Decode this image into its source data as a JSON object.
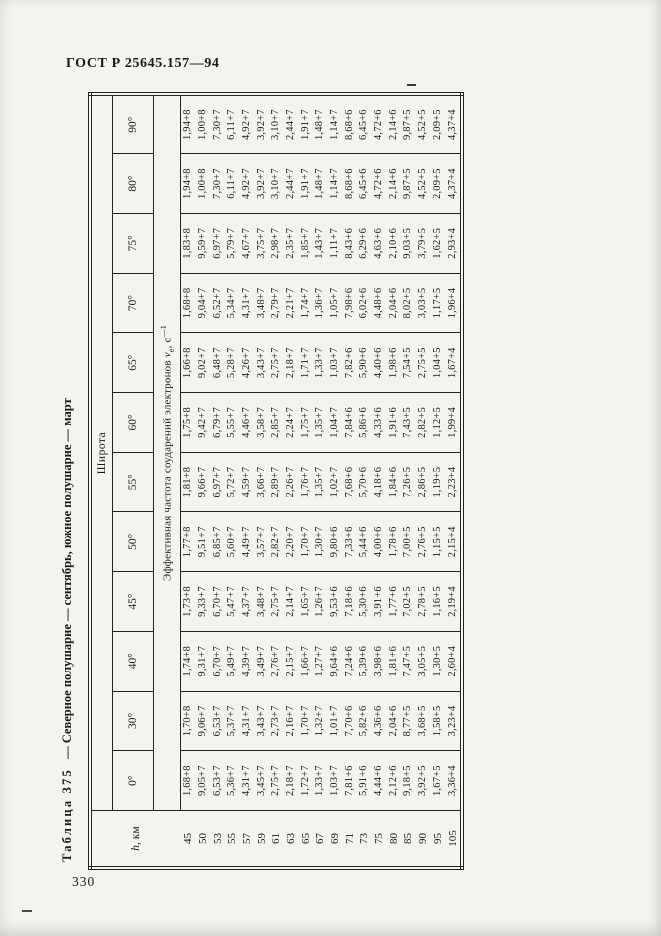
{
  "page": {
    "doc_code": "ГОСТ Р 25645.157—94",
    "page_number": "330"
  },
  "table": {
    "title_label": "Таблица 375",
    "title_rest": "— Северное полушарие — сентябрь, южное полушарие — март",
    "h_header_italic": "h",
    "h_header_rest": ", км",
    "latitude_group_header": "Широта",
    "subtitle_pre": "Эффективная частота соударений электронов ",
    "subtitle_nu": "ν",
    "subtitle_sub": "e",
    "subtitle_mid": ", с",
    "subtitle_sup": "—1",
    "latitudes": [
      "0°",
      "30°",
      "40°",
      "45°",
      "50°",
      "55°",
      "60°",
      "65°",
      "70°",
      "75°",
      "80°",
      "90°"
    ],
    "rows": [
      {
        "h": "45",
        "values": [
          "1,68+8",
          "1,70+8",
          "1,74+8",
          "1,73+8",
          "1,77+8",
          "1,81+8",
          "1,75+8",
          "1,66+8",
          "1,68+8",
          "1,83+8",
          "1,94+8",
          "1,94+8"
        ]
      },
      {
        "h": "50",
        "values": [
          "9,05+7",
          "9,06+7",
          "9,31+7",
          "9,33+7",
          "9,51+7",
          "9,66+7",
          "9,42+7",
          "9,02+7",
          "9,04+7",
          "9,59+7",
          "1,00+8",
          "1,00+8"
        ]
      },
      {
        "h": "53",
        "values": [
          "6,53+7",
          "6,53+7",
          "6,70+7",
          "6,70+7",
          "6,85+7",
          "6,97+7",
          "6,79+7",
          "6,48+7",
          "6,52+7",
          "6,97+7",
          "7,30+7",
          "7,30+7"
        ]
      },
      {
        "h": "55",
        "values": [
          "5,36+7",
          "5,37+7",
          "5,49+7",
          "5,47+7",
          "5,60+7",
          "5,72+7",
          "5,55+7",
          "5,28+7",
          "5,34+7",
          "5,79+7",
          "6,11+7",
          "6,11+7"
        ]
      },
      {
        "h": "57",
        "values": [
          "4,31+7",
          "4,31+7",
          "4,39+7",
          "4,37+7",
          "4,49+7",
          "4,59+7",
          "4,46+7",
          "4,26+7",
          "4,31+7",
          "4,67+7",
          "4,92+7",
          "4,92+7"
        ]
      },
      {
        "h": "59",
        "values": [
          "3,45+7",
          "3,43+7",
          "3,49+7",
          "3,48+7",
          "3,57+7",
          "3,66+7",
          "3,58+7",
          "3,43+7",
          "3,48+7",
          "3,75+7",
          "3,92+7",
          "3,92+7"
        ]
      },
      {
        "h": "61",
        "values": [
          "2,75+7",
          "2,73+7",
          "2,76+7",
          "2,75+7",
          "2,82+7",
          "2,89+7",
          "2,85+7",
          "2,75+7",
          "2,79+7",
          "2,98+7",
          "3,10+7",
          "3,10+7"
        ]
      },
      {
        "h": "63",
        "values": [
          "2,18+7",
          "2,16+7",
          "2,15+7",
          "2,14+7",
          "2,20+7",
          "2,26+7",
          "2,24+7",
          "2,18+7",
          "2,21+7",
          "2,35+7",
          "2,44+7",
          "2,44+7"
        ]
      },
      {
        "h": "65",
        "values": [
          "1,72+7",
          "1,70+7",
          "1,66+7",
          "1,65+7",
          "1,70+7",
          "1,76+7",
          "1,75+7",
          "1,71+7",
          "1,74+7",
          "1,85+7",
          "1,91+7",
          "1,91+7"
        ]
      },
      {
        "h": "67",
        "values": [
          "1,33+7",
          "1,32+7",
          "1,27+7",
          "1,26+7",
          "1,30+7",
          "1,35+7",
          "1,35+7",
          "1,33+7",
          "1,36+7",
          "1,43+7",
          "1,48+7",
          "1,48+7"
        ]
      },
      {
        "h": "69",
        "values": [
          "1,03+7",
          "1,01+7",
          "9,64+6",
          "9,53+6",
          "9,80+6",
          "1,02+7",
          "1,04+7",
          "1,03+7",
          "1,05+7",
          "1,11+7",
          "1,14+7",
          "1,14+7"
        ]
      },
      {
        "h": "71",
        "values": [
          "7,81+6",
          "7,70+6",
          "7,24+6",
          "7,18+6",
          "7,33+6",
          "7,68+6",
          "7,84+6",
          "7,82+6",
          "7,98+6",
          "8,43+6",
          "8,68+6",
          "8,68+6"
        ]
      },
      {
        "h": "73",
        "values": [
          "5,91+6",
          "5,82+6",
          "5,39+6",
          "5,30+6",
          "5,44+6",
          "5,70+6",
          "5,86+6",
          "5,90+6",
          "6,02+6",
          "6,29+6",
          "6,45+6",
          "6,45+6"
        ]
      },
      {
        "h": "75",
        "values": [
          "4,44+6",
          "4,36+6",
          "3,98+6",
          "3,91+6",
          "4,00+6",
          "4,18+6",
          "4,33+6",
          "4,40+6",
          "4,48+6",
          "4,63+6",
          "4,72+6",
          "4,72+6"
        ]
      },
      {
        "h": "80",
        "values": [
          "2,12+6",
          "2,04+6",
          "1,81+6",
          "1,77+6",
          "1,78+6",
          "1,84+6",
          "1,91+6",
          "1,98+6",
          "2,04+6",
          "2,10+6",
          "2,14+6",
          "2,14+6"
        ]
      },
      {
        "h": "85",
        "values": [
          "9,18+5",
          "8,77+5",
          "7,47+5",
          "7,02+5",
          "7,00+5",
          "7,26+5",
          "7,43+5",
          "7,54+5",
          "8,02+5",
          "9,03+5",
          "9,87+5",
          "9,87+5"
        ]
      },
      {
        "h": "90",
        "values": [
          "3,92+5",
          "3,68+5",
          "3,05+5",
          "2,78+5",
          "2,76+5",
          "2,86+5",
          "2,82+5",
          "2,75+5",
          "3,03+5",
          "3,79+5",
          "4,52+5",
          "4,52+5"
        ]
      },
      {
        "h": "95",
        "values": [
          "1,67+5",
          "1,58+5",
          "1,30+5",
          "1,16+5",
          "1,15+5",
          "1,19+5",
          "1,12+5",
          "1,04+5",
          "1,17+5",
          "1,62+5",
          "2,09+5",
          "2,09+5"
        ]
      },
      {
        "h": "105",
        "values": [
          "3,36+4",
          "3,23+4",
          "2,60+4",
          "2,19+4",
          "2,15+4",
          "2,23+4",
          "1,99+4",
          "1,67+4",
          "1,96+4",
          "2,93+4",
          "4,37+4",
          "4,37+4"
        ]
      }
    ]
  }
}
